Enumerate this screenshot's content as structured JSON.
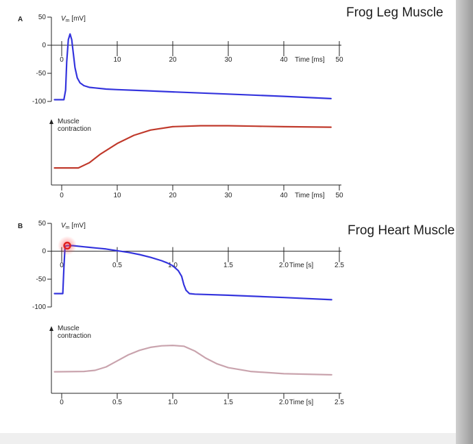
{
  "headings": {
    "panel_a": "Frog Leg Muscle",
    "panel_b": "Frog Heart Muscle"
  },
  "chart_data": [
    {
      "type": "line",
      "panel_label": "A",
      "ylabel": "V_m [mV]",
      "xlabel": "Time [ms]",
      "xlim": [
        0,
        50
      ],
      "ylim": [
        -100,
        50
      ],
      "x_ticks": [
        0,
        10,
        20,
        30,
        40,
        50
      ],
      "x_tick_labels": [
        "0",
        "10",
        "20",
        "30",
        "40",
        "50"
      ],
      "y_ticks": [
        50,
        0,
        -50,
        -100
      ],
      "y_tick_labels": [
        "50",
        "0",
        "-50",
        "-100"
      ],
      "grid": false,
      "series": [
        {
          "color": "#3333dd",
          "x": [
            -1.3,
            0.4,
            0.7,
            0.9,
            1.2,
            1.5,
            1.8,
            2.1,
            2.4,
            2.8,
            3.3,
            4,
            5,
            6,
            8,
            10,
            15,
            20,
            30,
            40,
            48.5
          ],
          "y": [
            -97,
            -97,
            -80,
            -30,
            10,
            20,
            10,
            -15,
            -40,
            -58,
            -67,
            -72,
            -75,
            -76,
            -78,
            -79,
            -81,
            -83,
            -87,
            -91,
            -95
          ]
        }
      ]
    },
    {
      "type": "line",
      "panel_label": "",
      "ylabel": "Muscle contraction",
      "xlabel": "Time [ms]",
      "xlim": [
        0,
        50
      ],
      "ylim": [
        0,
        1
      ],
      "x_ticks": [
        0,
        10,
        20,
        30,
        40,
        50
      ],
      "x_tick_labels": [
        "0",
        "10",
        "20",
        "30",
        "40",
        "50"
      ],
      "grid": false,
      "series": [
        {
          "color": "#c0392b",
          "x": [
            -1.3,
            3,
            5,
            7,
            10,
            13,
            16,
            20,
            25,
            30,
            35,
            40,
            48.5
          ],
          "y": [
            0.07,
            0.07,
            0.18,
            0.36,
            0.58,
            0.75,
            0.86,
            0.93,
            0.95,
            0.95,
            0.94,
            0.93,
            0.92
          ]
        }
      ]
    },
    {
      "type": "line",
      "panel_label": "B",
      "ylabel": "V_m [mV]",
      "xlabel": "Time [s]",
      "xlim": [
        0,
        2.5
      ],
      "ylim": [
        -100,
        50
      ],
      "x_ticks": [
        0,
        0.5,
        1.0,
        1.5,
        2.0,
        2.5
      ],
      "x_tick_labels": [
        "0",
        "0.5",
        "1.0",
        "1.5",
        "2.0",
        "2.5"
      ],
      "y_ticks": [
        50,
        0,
        -50,
        -100
      ],
      "y_tick_labels": [
        "50",
        "0",
        "-50",
        "-100"
      ],
      "grid": false,
      "series": [
        {
          "color": "#3333dd",
          "x": [
            -0.065,
            0.01,
            0.02,
            0.03,
            0.05,
            0.1,
            0.2,
            0.3,
            0.4,
            0.5,
            0.6,
            0.7,
            0.8,
            0.9,
            0.95,
            1.0,
            1.05,
            1.08,
            1.1,
            1.12,
            1.15,
            1.2,
            1.5,
            2.0,
            2.43
          ],
          "y": [
            -76,
            -76,
            -30,
            9,
            10,
            10,
            8,
            6,
            4,
            1,
            -2,
            -6,
            -11,
            -17,
            -21,
            -26,
            -35,
            -45,
            -60,
            -70,
            -76,
            -77,
            -79,
            -83,
            -87
          ]
        }
      ]
    },
    {
      "type": "line",
      "panel_label": "",
      "ylabel": "Muscle contraction",
      "xlabel": "Time [s]",
      "xlim": [
        0,
        2.5
      ],
      "ylim": [
        0,
        1
      ],
      "x_ticks": [
        0,
        0.5,
        1.0,
        1.5,
        2.0,
        2.5
      ],
      "x_tick_labels": [
        "0",
        "0.5",
        "1.0",
        "1.5",
        "2.0",
        "2.5"
      ],
      "grid": false,
      "series": [
        {
          "color": "#c9a3ad",
          "x": [
            -0.065,
            0.2,
            0.3,
            0.4,
            0.5,
            0.6,
            0.7,
            0.8,
            0.9,
            1.0,
            1.1,
            1.2,
            1.3,
            1.4,
            1.5,
            1.7,
            2.0,
            2.43
          ],
          "y": [
            0.17,
            0.18,
            0.21,
            0.3,
            0.46,
            0.62,
            0.74,
            0.82,
            0.86,
            0.87,
            0.85,
            0.72,
            0.53,
            0.38,
            0.28,
            0.18,
            0.12,
            0.09
          ]
        }
      ]
    }
  ]
}
